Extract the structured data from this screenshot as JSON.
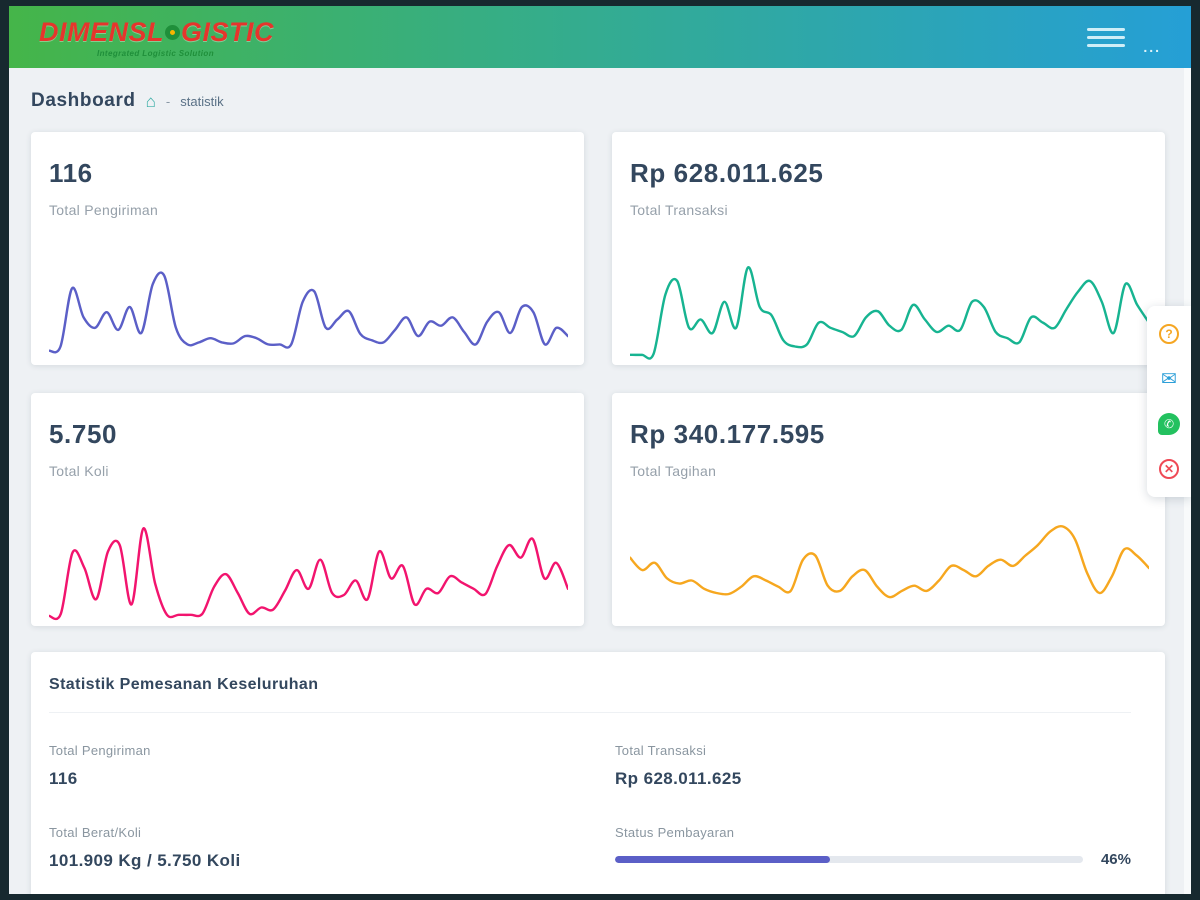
{
  "header": {
    "logo_part1": "DIMENSL",
    "logo_part2": "GISTIC",
    "tagline": "Integrated Logistic Solution",
    "menu_dots": "..."
  },
  "breadcrumb": {
    "title": "Dashboard",
    "home_icon": "⌂",
    "separator": "-",
    "current": "statistik"
  },
  "colors": {
    "accent_purple": "#5b5fc7",
    "accent_green": "#17b491",
    "accent_pink": "#f2146e",
    "accent_orange": "#f6a71f",
    "header_gradient_start": "#45b549",
    "header_gradient_end": "#259fd6",
    "logo_red": "#e5352c"
  },
  "cards": [
    {
      "value": "116",
      "label": "Total Pengiriman",
      "color": "#5b5fc7",
      "sparkline": [
        8,
        12,
        68,
        40,
        30,
        45,
        28,
        50,
        25,
        72,
        80,
        30,
        14,
        16,
        20,
        16,
        15,
        22,
        20,
        14,
        14,
        14,
        55,
        65,
        30,
        38,
        46,
        24,
        18,
        16,
        28,
        40,
        22,
        36,
        32,
        40,
        26,
        14,
        36,
        45,
        25,
        50,
        45,
        14,
        30,
        22
      ]
    },
    {
      "value": "Rp 628.011.625",
      "label": "Total Transaksi",
      "color": "#17b491",
      "sparkline": [
        4,
        4,
        5,
        62,
        75,
        30,
        38,
        25,
        55,
        30,
        88,
        50,
        42,
        18,
        12,
        14,
        35,
        30,
        26,
        22,
        40,
        46,
        32,
        28,
        52,
        38,
        26,
        32,
        28,
        55,
        50,
        26,
        20,
        16,
        40,
        35,
        30,
        48,
        65,
        75,
        55,
        25,
        72,
        52,
        35
      ]
    },
    {
      "value": "5.750",
      "label": "Total Koli",
      "color": "#f2146e",
      "sparkline": [
        4,
        6,
        65,
        50,
        20,
        66,
        72,
        15,
        88,
        35,
        5,
        5,
        5,
        6,
        32,
        44,
        26,
        6,
        12,
        10,
        28,
        48,
        30,
        58,
        26,
        24,
        38,
        20,
        66,
        40,
        52,
        15,
        30,
        26,
        42,
        36,
        30,
        25,
        52,
        72,
        60,
        78,
        40,
        55,
        30
      ]
    },
    {
      "value": "Rp 340.177.595",
      "label": "Total Tagihan",
      "color": "#f6a71f",
      "sparkline": [
        60,
        48,
        55,
        40,
        35,
        38,
        30,
        26,
        25,
        32,
        42,
        38,
        32,
        28,
        58,
        62,
        33,
        28,
        42,
        48,
        32,
        22,
        28,
        33,
        28,
        38,
        52,
        48,
        42,
        52,
        58,
        52,
        62,
        72,
        85,
        90,
        78,
        45,
        26,
        42,
        68,
        62,
        50
      ]
    }
  ],
  "summary": {
    "title": "Statistik Pemesanan Keseluruhan",
    "fields": [
      {
        "label": "Total Pengiriman",
        "value": "116"
      },
      {
        "label": "Total Transaksi",
        "value": "Rp 628.011.625"
      },
      {
        "label": "Total Berat/Koli",
        "value": "101.909 Kg / 5.750 Koli"
      },
      {
        "label": "Status Pembayaran",
        "value": "46%"
      }
    ],
    "progress_percent": 46,
    "progress_color": "#5b5fc7"
  },
  "fab": {
    "items": [
      {
        "name": "help",
        "glyph": "?",
        "color": "#f5a623"
      },
      {
        "name": "mail",
        "glyph": "✉",
        "color": "#2d9fd8"
      },
      {
        "name": "whatsapp",
        "glyph": "✆",
        "color": "#23c15f"
      },
      {
        "name": "close",
        "glyph": "✕",
        "color": "#ef4a56"
      }
    ]
  }
}
